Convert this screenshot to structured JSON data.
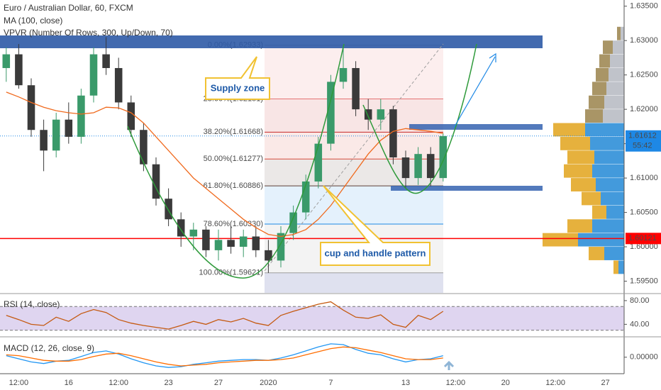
{
  "chart_data": [
    {
      "type": "candlestick",
      "title": "Euro / Australian Dollar, 60, FXCM",
      "categories": [
        null,
        "12:00",
        null,
        null,
        null,
        "16",
        null,
        null,
        null,
        "12:00",
        null,
        null,
        null,
        "23",
        null,
        null,
        null,
        "27",
        null,
        null,
        null,
        "2020",
        null,
        null,
        null,
        null,
        "7",
        null,
        null,
        null,
        null,
        null,
        "13",
        null,
        null,
        null,
        "12:00",
        null,
        null,
        null,
        "20",
        null,
        null,
        null,
        "12:00",
        null,
        null,
        null,
        "27",
        null
      ],
      "open": [
        1.626,
        1.628,
        1.6235,
        1.617,
        1.614,
        1.6185,
        1.616,
        1.622,
        1.628,
        1.626,
        1.621,
        1.617,
        1.612,
        1.607,
        1.604,
        1.6015,
        1.6025,
        1.5995,
        1.601,
        1.6,
        1.6015,
        1.5995,
        1.598,
        1.602,
        1.605,
        1.6095,
        1.615,
        1.624,
        1.626,
        1.62,
        1.6185,
        1.62,
        1.613,
        1.61,
        1.6135,
        1.61,
        null,
        null,
        null,
        null,
        null,
        null,
        null,
        null,
        null,
        null,
        null,
        null,
        null,
        null
      ],
      "high": [
        1.629,
        1.6295,
        1.6245,
        1.6185,
        1.6195,
        1.621,
        1.623,
        1.629,
        1.6305,
        1.6275,
        1.622,
        1.618,
        1.613,
        1.6085,
        1.605,
        1.6035,
        1.603,
        1.6025,
        1.603,
        1.6025,
        1.603,
        1.601,
        1.603,
        1.606,
        1.6105,
        1.616,
        1.625,
        1.6293,
        1.627,
        1.6215,
        1.6215,
        1.6205,
        1.614,
        1.6145,
        1.6145,
        1.6165,
        null,
        null,
        null,
        null,
        null,
        null,
        null,
        null,
        null,
        null,
        null,
        null,
        null,
        null
      ],
      "low": [
        1.624,
        1.623,
        1.616,
        1.611,
        1.613,
        1.615,
        1.615,
        1.621,
        1.625,
        1.62,
        1.616,
        1.611,
        1.606,
        1.603,
        1.6,
        1.5995,
        1.5985,
        1.598,
        1.599,
        1.5985,
        1.5985,
        1.5962,
        1.597,
        1.601,
        1.604,
        1.6085,
        1.614,
        1.623,
        1.619,
        1.617,
        1.617,
        1.612,
        1.6085,
        1.609,
        1.6088,
        1.6095,
        null,
        null,
        null,
        null,
        null,
        null,
        null,
        null,
        null,
        null,
        null,
        null,
        null,
        null
      ],
      "close": [
        1.628,
        1.6235,
        1.617,
        1.614,
        1.6185,
        1.616,
        1.622,
        1.628,
        1.626,
        1.621,
        1.617,
        1.612,
        1.607,
        1.604,
        1.6015,
        1.6025,
        1.5995,
        1.601,
        1.6,
        1.6015,
        1.5995,
        1.598,
        1.602,
        1.605,
        1.6095,
        1.615,
        1.624,
        1.626,
        1.62,
        1.6185,
        1.62,
        1.613,
        1.61,
        1.6135,
        1.61,
        1.6161,
        null,
        null,
        null,
        null,
        null,
        null,
        null,
        null,
        null,
        null,
        null,
        null,
        null,
        null
      ],
      "up_color": "#3a9a6a",
      "down_color": "#3a3a3a",
      "ylim": [
        1.5933,
        1.6359
      ],
      "yticks": [
        {
          "value": 1.595,
          "label": "1.59500"
        },
        {
          "value": 1.6,
          "label": "1.60000"
        },
        {
          "value": 1.605,
          "label": "1.60500"
        },
        {
          "value": 1.61,
          "label": "1.61000"
        },
        {
          "value": 1.615,
          "label": "1.61500"
        },
        {
          "value": 1.62,
          "label": "1.62000"
        },
        {
          "value": 1.625,
          "label": "1.62500"
        },
        {
          "value": 1.63,
          "label": "1.63000"
        },
        {
          "value": 1.635,
          "label": "1.63500"
        }
      ],
      "grid": false,
      "series": [
        {
          "name": "MA (100, close)",
          "color": "#f06a1e",
          "values": [
            1.6225,
            1.6218,
            1.621,
            1.6203,
            1.6198,
            1.6195,
            1.6193,
            1.6195,
            1.6203,
            1.6202,
            1.6195,
            1.618,
            1.616,
            1.614,
            1.612,
            1.61,
            1.6085,
            1.607,
            1.6055,
            1.604,
            1.6028,
            1.6018,
            1.6015,
            1.6018,
            1.6025,
            1.604,
            1.606,
            1.6085,
            1.611,
            1.6135,
            1.6155,
            1.6168,
            1.6172,
            1.617,
            1.6168,
            1.6165,
            null,
            null,
            null,
            null,
            null,
            null,
            null,
            null,
            null,
            null,
            null,
            null,
            null,
            null
          ]
        }
      ],
      "vpvr": {
        "name": "VPVR (Number Of Rows, 300, Up/Down, 70)",
        "prices": [
          1.597,
          1.599,
          1.601,
          1.603,
          1.605,
          1.607,
          1.609,
          1.611,
          1.613,
          1.615,
          1.617,
          1.619,
          1.621,
          1.623,
          1.625,
          1.627,
          1.629,
          1.631
        ],
        "up": [
          8,
          28,
          65,
          45,
          25,
          33,
          40,
          45,
          42,
          48,
          55,
          30,
          28,
          25,
          22,
          20,
          16,
          5
        ],
        "down": [
          7,
          22,
          50,
          35,
          20,
          27,
          35,
          40,
          38,
          42,
          45,
          25,
          22,
          20,
          18,
          15,
          14,
          5
        ],
        "xlim": [
          0,
          140
        ],
        "value_area": [
          1.596,
          1.6185
        ],
        "up_color": "#2f8fd8",
        "down_color": "#e3a928",
        "outside_up_color": "#b9bcc4",
        "outside_down_color": "#a08a55"
      },
      "fib_levels": [
        {
          "label": "0.00%(1.62933)",
          "value": 1.62933,
          "color": "#9e9e9e"
        },
        {
          "label": "23.60%(1.62151)",
          "value": 1.62151,
          "color": "#e57373"
        },
        {
          "label": "38.20%(1.61668)",
          "value": 1.61668,
          "color": "#c62828"
        },
        {
          "label": "50.00%(1.61277)",
          "value": 1.61277,
          "color": "#d84a3a"
        },
        {
          "label": "61.80%(1.60886)",
          "value": 1.60886,
          "color": "#5d4037"
        },
        {
          "label": "78.60%(1.60330)",
          "value": 1.6033,
          "color": "#1e88e5"
        },
        {
          "label": "100.00%(1.59621)",
          "value": 1.59621,
          "color": "#9e9e9e"
        }
      ],
      "last_price": {
        "value": 1.61612,
        "countdown": "55:42",
        "color": "#1e88e5"
      },
      "hline": {
        "value": 1.60121,
        "color": "#ff0000"
      },
      "annotations": [
        "Supply zone",
        "cup and handle pattern"
      ]
    },
    {
      "type": "line",
      "title": "RSI (14, close)",
      "ylim": [
        21.3,
        90.7
      ],
      "yticks": [
        {
          "value": 40,
          "label": "40.00"
        },
        {
          "value": 80,
          "label": "80.00"
        }
      ],
      "levels": [
        30,
        70
      ],
      "band_color": "#7e57c2",
      "series": [
        {
          "color": "#c55a11",
          "values": [
            55,
            48,
            40,
            38,
            52,
            45,
            58,
            65,
            60,
            48,
            42,
            38,
            35,
            32,
            38,
            45,
            40,
            48,
            44,
            50,
            42,
            38,
            55,
            62,
            68,
            74,
            78,
            64,
            52,
            50,
            56,
            40,
            35,
            55,
            48,
            62,
            null,
            null,
            null,
            null,
            null,
            null,
            null,
            null,
            null,
            null,
            null,
            null,
            null,
            null
          ]
        }
      ]
    },
    {
      "type": "line",
      "title": "MACD (12, 26, close, 9)",
      "ylim": [
        -0.002,
        0.0025
      ],
      "yticks": [
        {
          "value": 0,
          "label": "0.00000"
        }
      ],
      "series": [
        {
          "color": "#2196f3",
          "values": [
            0.0002,
            -0.0002,
            -0.0006,
            -0.0008,
            -0.0005,
            -0.0004,
            0.0001,
            0.0006,
            0.0008,
            0.0004,
            -0.0002,
            -0.0007,
            -0.0011,
            -0.0013,
            -0.0012,
            -0.0009,
            -0.0007,
            -0.0005,
            -0.0004,
            -0.0003,
            -0.0003,
            -0.0004,
            -0.0001,
            0.0003,
            0.0008,
            0.0013,
            0.0017,
            0.0016,
            0.001,
            0.0005,
            0.0003,
            -0.0002,
            -0.0006,
            -0.0003,
            -0.0002,
            0.0002,
            null,
            null,
            null,
            null,
            null,
            null,
            null,
            null,
            null,
            null,
            null,
            null,
            null,
            null
          ]
        },
        {
          "color": "#ff6d00",
          "values": [
            0.0003,
            0.0002,
            -0.0001,
            -0.0004,
            -0.0005,
            -0.0005,
            -0.0003,
            0.0001,
            0.0004,
            0.0005,
            0.0002,
            -0.0002,
            -0.0006,
            -0.0009,
            -0.0011,
            -0.001,
            -0.0009,
            -0.0007,
            -0.0006,
            -0.0005,
            -0.0004,
            -0.0004,
            -0.0003,
            -0.0001,
            0.0003,
            0.0007,
            0.0011,
            0.0013,
            0.0012,
            0.0009,
            0.0006,
            0.0002,
            -0.0002,
            -0.0003,
            -0.0003,
            -0.0001,
            null,
            null,
            null,
            null,
            null,
            null,
            null,
            null,
            null,
            null,
            null,
            null,
            null,
            null
          ]
        }
      ]
    }
  ]
}
